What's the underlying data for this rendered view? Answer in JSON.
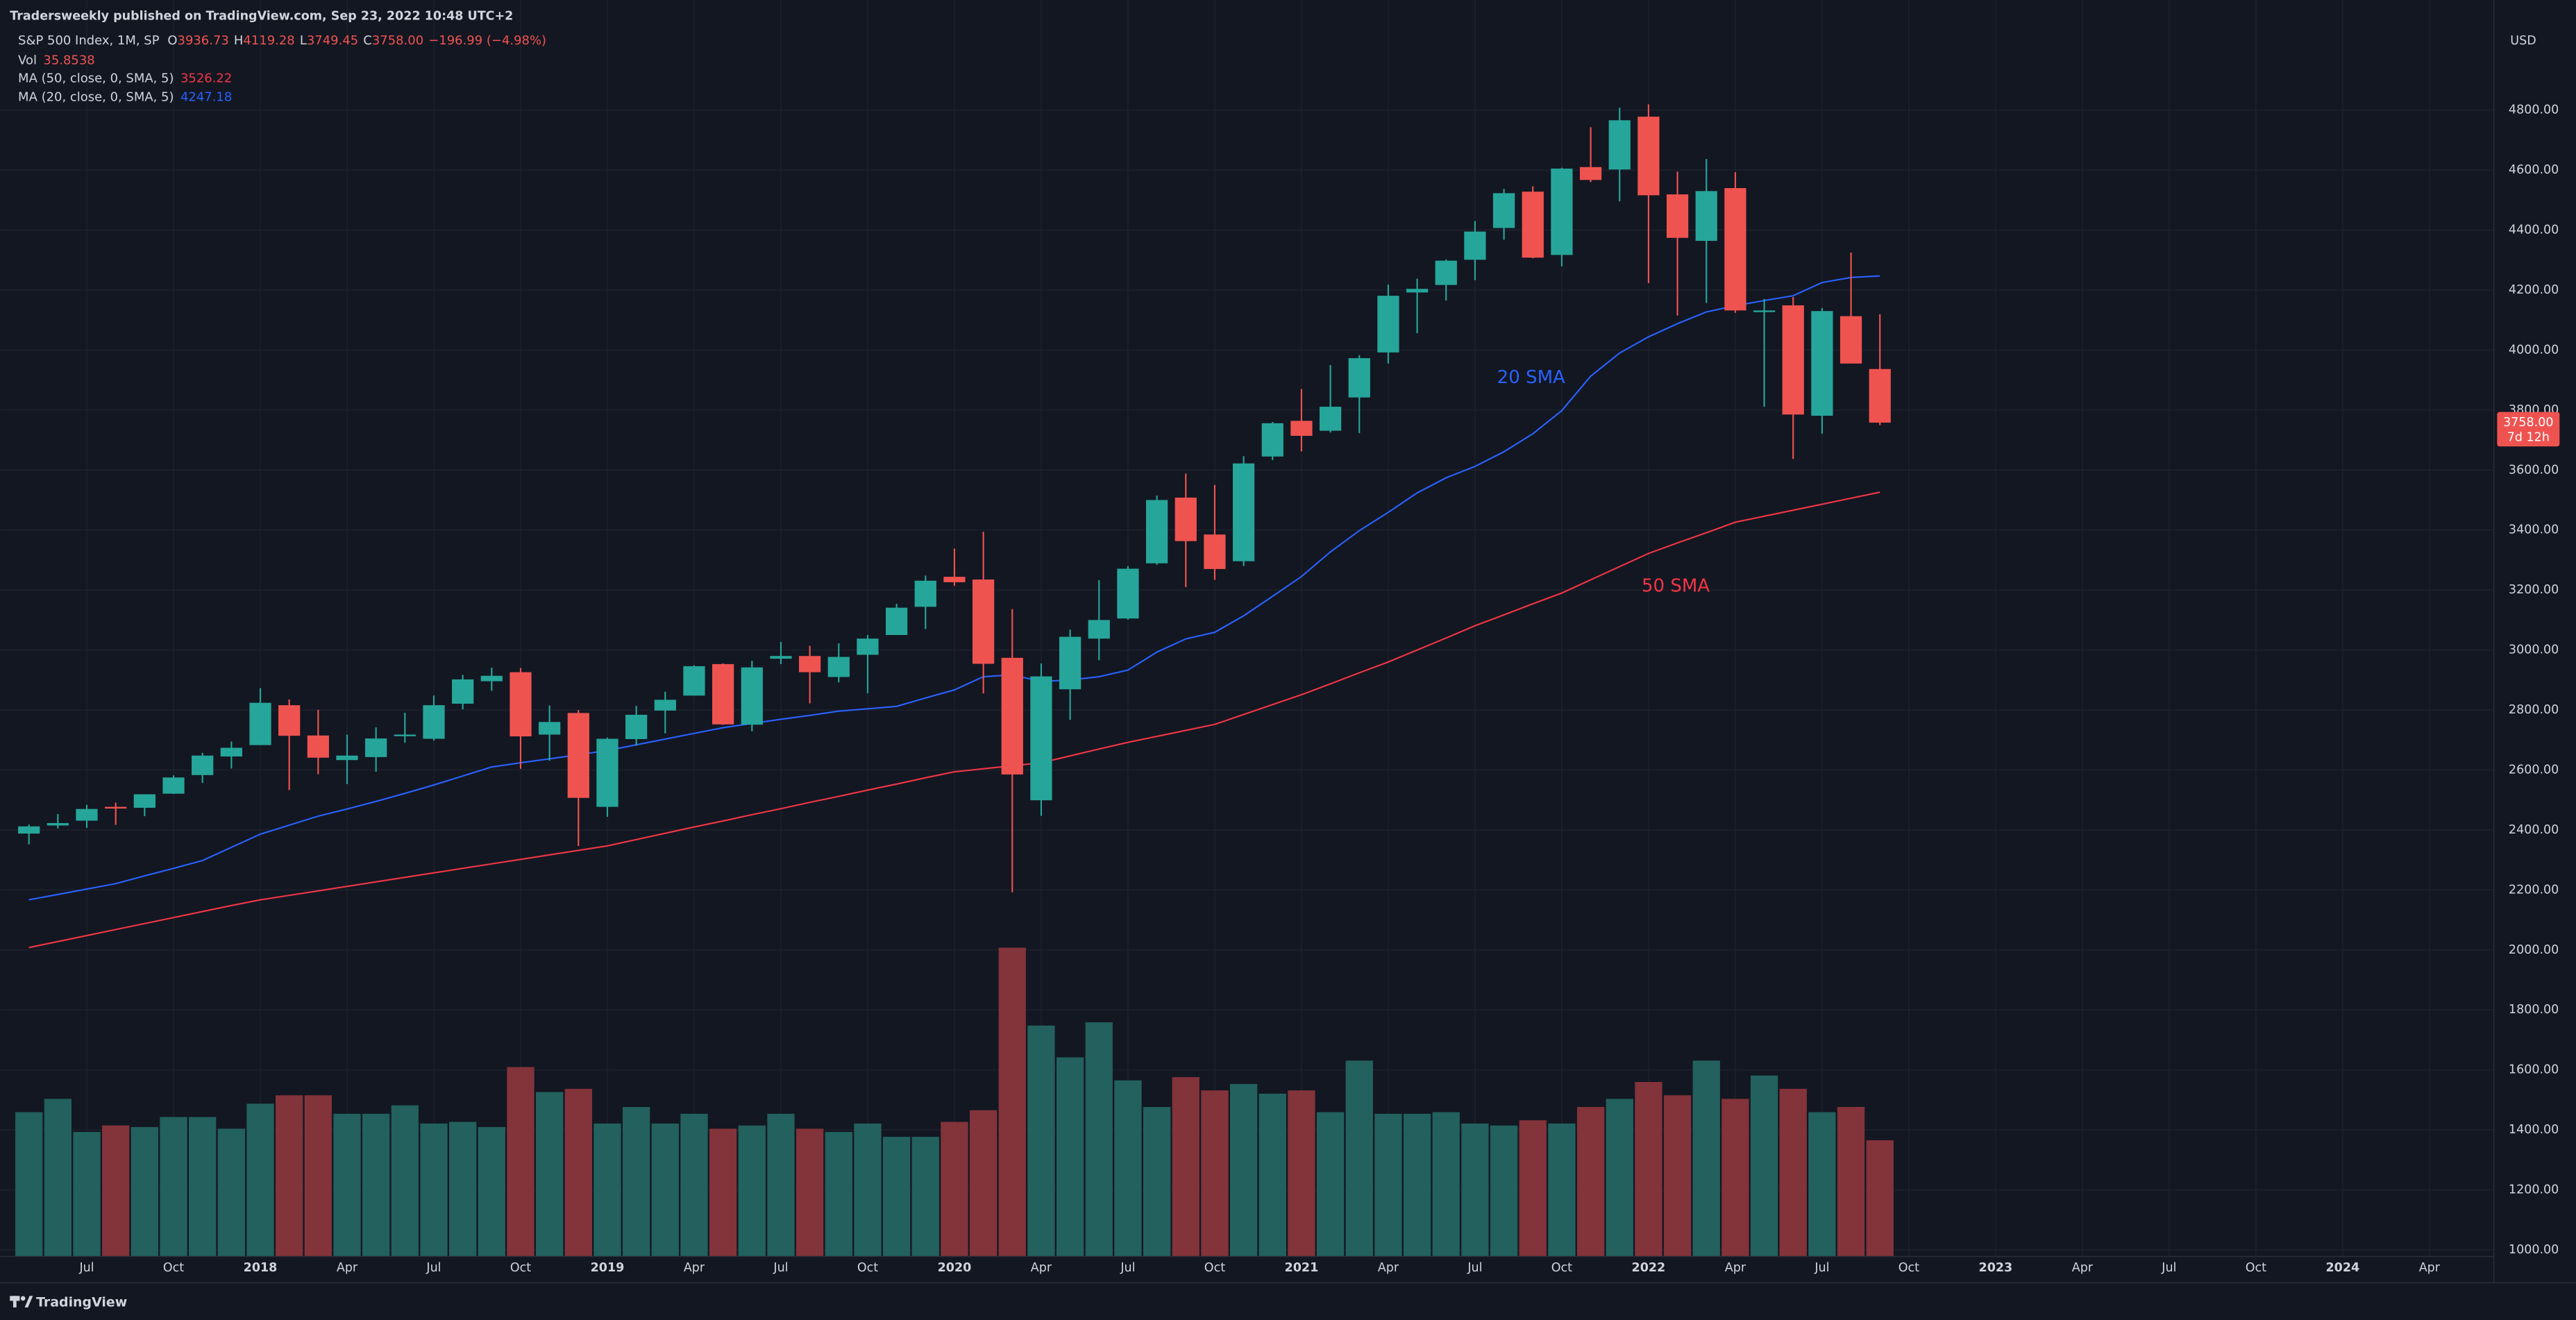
{
  "header": "Tradersweekly published on TradingView.com, Sep 23, 2022 10:48 UTC+2",
  "footer": "TradingView",
  "chart_data": {
    "type": "candlestick",
    "title": "S&P 500 Index, 1M, SP",
    "ohlc_labels": [
      "O",
      "H",
      "L",
      "C"
    ],
    "change": "−196.99 (−4.98%)",
    "currency": "USD",
    "last_price_label": "3758.00",
    "countdown": "7d 12h",
    "x": [
      "2017-05",
      "2017-06",
      "2017-07",
      "2017-08",
      "2017-09",
      "2017-10",
      "2017-11",
      "2017-12",
      "2018-01",
      "2018-02",
      "2018-03",
      "2018-04",
      "2018-05",
      "2018-06",
      "2018-07",
      "2018-08",
      "2018-09",
      "2018-10",
      "2018-11",
      "2018-12",
      "2019-01",
      "2019-02",
      "2019-03",
      "2019-04",
      "2019-05",
      "2019-06",
      "2019-07",
      "2019-08",
      "2019-09",
      "2019-10",
      "2019-11",
      "2019-12",
      "2020-01",
      "2020-02",
      "2020-03",
      "2020-04",
      "2020-05",
      "2020-06",
      "2020-07",
      "2020-08",
      "2020-09",
      "2020-10",
      "2020-11",
      "2020-12",
      "2021-01",
      "2021-02",
      "2021-03",
      "2021-04",
      "2021-05",
      "2021-06",
      "2021-07",
      "2021-08",
      "2021-09",
      "2021-10",
      "2021-11",
      "2021-12",
      "2022-01",
      "2022-02",
      "2022-03",
      "2022-04",
      "2022-05",
      "2022-06",
      "2022-07",
      "2022-08",
      "2022-09"
    ],
    "open": [
      2388,
      2415,
      2431,
      2477,
      2474,
      2521,
      2583,
      2645,
      2683,
      2816,
      2715,
      2633,
      2643,
      2718,
      2704,
      2821,
      2896,
      2926,
      2718,
      2790,
      2477,
      2703,
      2798,
      2848,
      2953,
      2751,
      2971,
      2980,
      2910,
      2984,
      3050,
      3144,
      3244,
      3235,
      2974,
      2499,
      2869,
      3038,
      3105,
      3289,
      3508,
      3385,
      3296,
      3645,
      3764,
      3731,
      3842,
      3992,
      4192,
      4217,
      4301,
      4407,
      4528,
      4317,
      4610,
      4602,
      4778,
      4519,
      4364,
      4540,
      4130,
      4149,
      3781,
      4113,
      3936.73
    ],
    "high": [
      2418,
      2453,
      2484,
      2491,
      2519,
      2582,
      2657,
      2695,
      2873,
      2835,
      2801,
      2718,
      2742,
      2791,
      2848,
      2917,
      2941,
      2940,
      2815,
      2800,
      2708,
      2814,
      2861,
      2949,
      2955,
      2964,
      3027,
      3014,
      3022,
      3050,
      3154,
      3248,
      3338,
      3394,
      3136,
      2955,
      3068,
      3233,
      3280,
      3515,
      3588,
      3550,
      3646,
      3760,
      3870,
      3950,
      3983,
      4218,
      4238,
      4302,
      4430,
      4537,
      4546,
      4608,
      4743,
      4808,
      4819,
      4595,
      4637,
      4593,
      4170,
      4177,
      4140,
      4325,
      4119.28
    ],
    "low": [
      2352,
      2405,
      2407,
      2417,
      2446,
      2520,
      2557,
      2605,
      2683,
      2533,
      2586,
      2553,
      2594,
      2691,
      2698,
      2802,
      2864,
      2604,
      2631,
      2347,
      2444,
      2681,
      2722,
      2848,
      2751,
      2729,
      2953,
      2822,
      2892,
      2856,
      3050,
      3070,
      3214,
      2855,
      2192,
      2447,
      2767,
      2966,
      3101,
      3284,
      3210,
      3234,
      3280,
      3633,
      3662,
      3725,
      3723,
      3955,
      4056,
      4165,
      4233,
      4368,
      4306,
      4279,
      4560,
      4496,
      4223,
      4115,
      4157,
      4124,
      3811,
      3637,
      3721,
      3955,
      3749.45
    ],
    "close": [
      2412,
      2423,
      2470,
      2472,
      2519,
      2575,
      2648,
      2674,
      2824,
      2714,
      2641,
      2648,
      2705,
      2718,
      2816,
      2902,
      2914,
      2712,
      2760,
      2507,
      2704,
      2784,
      2834,
      2946,
      2752,
      2942,
      2980,
      2926,
      2977,
      3038,
      3141,
      3231,
      3226,
      2954,
      2585,
      2912,
      3044,
      3100,
      3271,
      3500,
      3363,
      3270,
      3622,
      3756,
      3714,
      3811,
      3973,
      4181,
      4204,
      4298,
      4395,
      4523,
      4308,
      4605,
      4567,
      4766,
      4516,
      4374,
      4530,
      4132,
      4132,
      3785,
      4130,
      3955,
      3758
    ],
    "up_color": "#26a69a",
    "down_color": "#ef5350",
    "volume": {
      "name": "Vol",
      "up_color": "#22615e",
      "down_color": "#83333a",
      "values": [
        44.5,
        48.6,
        38.4,
        40.4,
        39.9,
        43.0,
        43.0,
        39.4,
        47.1,
        49.7,
        49.7,
        44.0,
        44.0,
        46.6,
        41.0,
        41.5,
        39.9,
        58.4,
        50.7,
        51.7,
        41.0,
        46.1,
        41.0,
        44.0,
        39.4,
        40.4,
        44.0,
        39.4,
        38.4,
        41.0,
        36.9,
        36.9,
        41.5,
        45.1,
        95.2,
        71.2,
        61.4,
        72.2,
        54.3,
        46.1,
        55.3,
        51.2,
        53.2,
        50.2,
        51.2,
        44.5,
        60.4,
        44.0,
        44.0,
        44.5,
        41.0,
        40.4,
        42.0,
        41.0,
        46.1,
        48.6,
        53.8,
        49.7,
        60.4,
        48.6,
        55.8,
        51.7,
        44.5,
        46.1,
        35.8538
      ]
    },
    "series": [
      {
        "name": "MA (50, close, 0, SMA, 5)",
        "color": "#f23645",
        "values": [
          2008,
          2028,
          2048,
          2068,
          2088,
          2108,
          2128,
          2148,
          2167,
          2182,
          2197,
          2212,
          2227,
          2242,
          2257,
          2272,
          2287,
          2302,
          2317,
          2332,
          2347,
          2368,
          2389,
          2410,
          2430,
          2451,
          2471,
          2492,
          2512,
          2533,
          2553,
          2574,
          2594,
          2604,
          2614,
          2624,
          2647,
          2670,
          2692,
          2712,
          2732,
          2752,
          2785,
          2818,
          2851,
          2887,
          2924,
          2960,
          3000,
          3040,
          3081,
          3117,
          3154,
          3190,
          3234,
          3278,
          3322,
          3357,
          3391,
          3426,
          3446,
          3466,
          3486,
          3506,
          3526.22
        ]
      },
      {
        "name": "MA (20, close, 0, SMA, 5)",
        "color": "#2962ff",
        "values": [
          2167,
          2185,
          2203,
          2221,
          2247,
          2272,
          2298,
          2342,
          2386,
          2416,
          2446,
          2470,
          2495,
          2522,
          2550,
          2580,
          2610,
          2624,
          2637,
          2651,
          2665,
          2684,
          2703,
          2722,
          2741,
          2755,
          2769,
          2782,
          2796,
          2804,
          2812,
          2840,
          2867,
          2911,
          2917,
          2895,
          2900,
          2911,
          2933,
          2993,
          3037,
          3059,
          3114,
          3179,
          3245,
          3327,
          3398,
          3459,
          3524,
          3574,
          3612,
          3661,
          3721,
          3798,
          3913,
          3990,
          4044,
          4088,
          4127,
          4148,
          4165,
          4181,
          4225,
          4242,
          4247.18
        ]
      }
    ],
    "annotations": [
      {
        "text": "20 SMA",
        "color": "#2962ff"
      },
      {
        "text": "50 SMA",
        "color": "#f23645"
      }
    ],
    "ylim": [
      978,
      5167
    ],
    "yticks": [
      {
        "value": 1000,
        "label": "1000.00"
      },
      {
        "value": 1200,
        "label": "1200.00"
      },
      {
        "value": 1400,
        "label": "1400.00"
      },
      {
        "value": 1600,
        "label": "1600.00"
      },
      {
        "value": 1800,
        "label": "1800.00"
      },
      {
        "value": 2000,
        "label": "2000.00"
      },
      {
        "value": 2200,
        "label": "2200.00"
      },
      {
        "value": 2400,
        "label": "2400.00"
      },
      {
        "value": 2600,
        "label": "2600.00"
      },
      {
        "value": 2800,
        "label": "2800.00"
      },
      {
        "value": 3000,
        "label": "3000.00"
      },
      {
        "value": 3200,
        "label": "3200.00"
      },
      {
        "value": 3400,
        "label": "3400.00"
      },
      {
        "value": 3600,
        "label": "3600.00"
      },
      {
        "value": 3800,
        "label": "3800.00"
      },
      {
        "value": 4000,
        "label": "4000.00"
      },
      {
        "value": 4200,
        "label": "4200.00"
      },
      {
        "value": 4400,
        "label": "4400.00"
      },
      {
        "value": 4600,
        "label": "4600.00"
      },
      {
        "value": 4800,
        "label": "4800.00"
      }
    ],
    "xlim": [
      "2017-04",
      "2024-06"
    ],
    "xticks": [
      {
        "value": "2017-07",
        "label": "Jul"
      },
      {
        "value": "2017-10",
        "label": "Oct"
      },
      {
        "value": "2018-01",
        "label": "2018"
      },
      {
        "value": "2018-04",
        "label": "Apr"
      },
      {
        "value": "2018-07",
        "label": "Jul"
      },
      {
        "value": "2018-10",
        "label": "Oct"
      },
      {
        "value": "2019-01",
        "label": "2019"
      },
      {
        "value": "2019-04",
        "label": "Apr"
      },
      {
        "value": "2019-07",
        "label": "Jul"
      },
      {
        "value": "2019-10",
        "label": "Oct"
      },
      {
        "value": "2020-01",
        "label": "2020"
      },
      {
        "value": "2020-04",
        "label": "Apr"
      },
      {
        "value": "2020-07",
        "label": "Jul"
      },
      {
        "value": "2020-10",
        "label": "Oct"
      },
      {
        "value": "2021-01",
        "label": "2021"
      },
      {
        "value": "2021-04",
        "label": "Apr"
      },
      {
        "value": "2021-07",
        "label": "Jul"
      },
      {
        "value": "2021-10",
        "label": "Oct"
      },
      {
        "value": "2022-01",
        "label": "2022"
      },
      {
        "value": "2022-04",
        "label": "Apr"
      },
      {
        "value": "2022-07",
        "label": "Jul"
      },
      {
        "value": "2022-10",
        "label": "Oct"
      },
      {
        "value": "2023-01",
        "label": "2023"
      },
      {
        "value": "2023-04",
        "label": "Apr"
      },
      {
        "value": "2023-07",
        "label": "Jul"
      },
      {
        "value": "2023-10",
        "label": "Oct"
      },
      {
        "value": "2024-01",
        "label": "2024"
      },
      {
        "value": "2024-04",
        "label": "Apr"
      }
    ],
    "grid": true
  }
}
